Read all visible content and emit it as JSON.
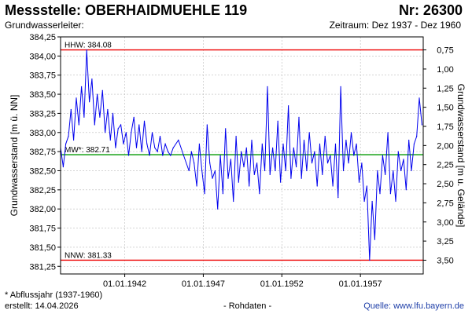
{
  "header": {
    "title": "Messstelle: OBERHAIDMUEHLE 119",
    "number": "Nr: 26300",
    "aquifer_label": "Grundwasserleiter:",
    "period": "Zeitraum: Dez 1937 - Dez 1960"
  },
  "footer": {
    "footnote": "* Abflussjahr (1937-1960)",
    "created": "erstellt:  14.04.2026",
    "raw": "- Rohdaten -",
    "source": "Quelle: www.lfu.bayern.de"
  },
  "colors": {
    "series": "#0000ee",
    "extreme_lines": "#ee0000",
    "mean_line": "#009900",
    "grid": "#bbbbbb"
  },
  "chart_data": {
    "type": "line",
    "ylabel_left": "Grundwasserstand [m ü. NN]",
    "ylabel_right": "Grundwasserstand [m u. Gelände]",
    "ylim": [
      381.15,
      384.25
    ],
    "yticks_left": [
      381.25,
      381.5,
      381.75,
      382.0,
      382.25,
      382.5,
      382.75,
      383.0,
      383.25,
      383.5,
      383.75,
      384.0,
      384.25
    ],
    "yticklabels_left": [
      "381,25",
      "381,50",
      "381,75",
      "382,00",
      "382,25",
      "382,50",
      "382,75",
      "383,00",
      "383,25",
      "383,50",
      "383,75",
      "384,00",
      "384,25"
    ],
    "right_axis_offset": 384.83,
    "yticks_right": [
      0.75,
      1.0,
      1.25,
      1.5,
      1.75,
      2.0,
      2.25,
      2.5,
      2.75,
      3.0,
      3.25,
      3.5
    ],
    "yticklabels_right": [
      "0,75",
      "1,00",
      "1,25",
      "1,50",
      "1,75",
      "2,00",
      "2,25",
      "2,50",
      "2,75",
      "3,00",
      "3,25",
      "3,50"
    ],
    "xlim": [
      "1937-12-01",
      "1960-12-31"
    ],
    "xticks": [
      "1942-01-01",
      "1947-01-01",
      "1952-01-01",
      "1957-01-01"
    ],
    "xticklabels": [
      "01.01.1942",
      "01.01.1947",
      "01.01.1952",
      "01.01.1957"
    ],
    "grid": true,
    "reference_lines": [
      {
        "label": "HHW: 384.08",
        "value": 384.08,
        "color": "#ee0000"
      },
      {
        "label": "MW*: 382.71",
        "value": 382.71,
        "color": "#009900"
      },
      {
        "label": "NNW: 381.33",
        "value": 381.33,
        "color": "#ee0000"
      }
    ],
    "series": [
      {
        "x": [
          "1937-12-01",
          "1938-02-01",
          "1938-04-01",
          "1938-06-01",
          "1938-08-01",
          "1938-10-01",
          "1938-12-01",
          "1939-02-01",
          "1939-04-01",
          "1939-06-01",
          "1939-08-01",
          "1939-10-01",
          "1939-12-01",
          "1940-02-01",
          "1940-04-01",
          "1940-06-01",
          "1940-08-01",
          "1940-10-01",
          "1940-12-01",
          "1941-02-01",
          "1941-04-01",
          "1941-06-01",
          "1941-08-01",
          "1941-10-01",
          "1941-12-01",
          "1942-02-01",
          "1942-04-01",
          "1942-06-01",
          "1942-08-01",
          "1942-10-01",
          "1942-12-01",
          "1943-02-01",
          "1943-04-01",
          "1943-06-01",
          "1943-08-01",
          "1943-10-01",
          "1943-12-01",
          "1944-02-01",
          "1944-04-01",
          "1944-06-01",
          "1944-08-01",
          "1944-10-01",
          "1944-12-01",
          "1945-02-01",
          "1945-06-01",
          "1945-10-01",
          "1946-02-01",
          "1946-04-01",
          "1946-06-01",
          "1946-08-01",
          "1946-10-01",
          "1946-12-01",
          "1947-02-01",
          "1947-04-01",
          "1947-06-01",
          "1947-08-01",
          "1947-10-01",
          "1947-12-01",
          "1948-02-01",
          "1948-04-01",
          "1948-06-01",
          "1948-08-01",
          "1948-10-01",
          "1948-12-01",
          "1949-02-01",
          "1949-04-01",
          "1949-06-01",
          "1949-08-01",
          "1949-10-01",
          "1949-12-01",
          "1950-02-01",
          "1950-04-01",
          "1950-06-01",
          "1950-08-01",
          "1950-10-01",
          "1950-12-01",
          "1951-02-01",
          "1951-04-01",
          "1951-06-01",
          "1951-08-01",
          "1951-10-01",
          "1951-12-01",
          "1952-02-01",
          "1952-04-01",
          "1952-06-01",
          "1952-08-01",
          "1952-10-01",
          "1952-12-01",
          "1953-02-01",
          "1953-04-01",
          "1953-06-01",
          "1953-08-01",
          "1953-10-01",
          "1953-12-01",
          "1954-02-01",
          "1954-04-01",
          "1954-06-01",
          "1954-08-01",
          "1954-10-01",
          "1954-12-01",
          "1955-02-01",
          "1955-04-01",
          "1955-06-01",
          "1955-08-01",
          "1955-10-01",
          "1955-12-01",
          "1956-02-01",
          "1956-04-01",
          "1956-06-01",
          "1956-08-01",
          "1956-10-01",
          "1956-12-01",
          "1957-02-01",
          "1957-04-01",
          "1957-06-01",
          "1957-08-01",
          "1957-10-01",
          "1957-12-01",
          "1958-02-01",
          "1958-04-01",
          "1958-06-01",
          "1958-08-01",
          "1958-10-01",
          "1958-12-01",
          "1959-02-01",
          "1959-04-01",
          "1959-06-01",
          "1959-08-01",
          "1959-10-01",
          "1959-12-01",
          "1960-02-01",
          "1960-04-01",
          "1960-06-01",
          "1960-08-01",
          "1960-10-01",
          "1960-12-01"
        ],
        "y": [
          382.8,
          382.55,
          382.85,
          382.95,
          383.3,
          382.9,
          383.45,
          383.1,
          383.6,
          383.2,
          384.08,
          383.4,
          383.7,
          383.1,
          383.5,
          383.2,
          383.55,
          383.0,
          383.3,
          382.9,
          383.25,
          382.8,
          383.05,
          383.1,
          382.85,
          383.0,
          382.7,
          383.0,
          383.2,
          382.8,
          383.1,
          382.75,
          383.15,
          382.85,
          382.7,
          383.0,
          382.8,
          382.75,
          382.95,
          382.7,
          382.85,
          382.75,
          382.7,
          382.8,
          382.9,
          382.7,
          382.5,
          382.75,
          382.6,
          382.3,
          382.85,
          382.5,
          382.2,
          383.1,
          382.6,
          382.4,
          382.5,
          382.0,
          382.7,
          382.2,
          383.05,
          382.4,
          382.65,
          382.1,
          382.95,
          382.35,
          382.75,
          382.55,
          382.8,
          382.3,
          382.9,
          382.45,
          382.6,
          382.2,
          382.85,
          382.5,
          383.6,
          382.45,
          382.8,
          382.5,
          383.15,
          382.35,
          382.85,
          382.5,
          383.35,
          382.4,
          382.8,
          382.55,
          383.2,
          382.4,
          382.9,
          382.5,
          383.0,
          382.6,
          382.75,
          382.3,
          382.85,
          382.45,
          382.95,
          382.6,
          382.7,
          382.3,
          382.85,
          382.15,
          383.6,
          382.5,
          382.9,
          382.6,
          383.0,
          382.7,
          382.85,
          382.35,
          382.6,
          382.1,
          382.3,
          381.33,
          382.1,
          381.6,
          382.5,
          382.2,
          382.7,
          382.45,
          383.0,
          382.2,
          382.5,
          382.1,
          382.75,
          382.5,
          382.65,
          382.25,
          382.9,
          382.5,
          382.85,
          382.95,
          383.45,
          383.1
        ]
      }
    ]
  }
}
